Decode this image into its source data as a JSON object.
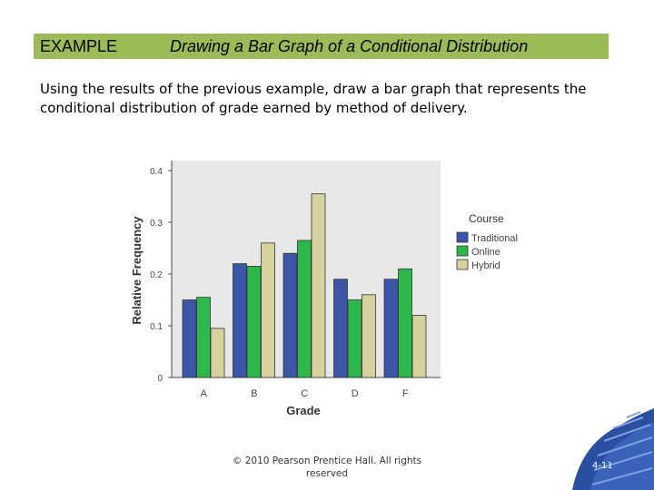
{
  "header": {
    "label": "EXAMPLE",
    "title": "Drawing a Bar Graph of a Conditional Distribution"
  },
  "intro_text": "Using the results of the previous example, draw a bar graph that represents the conditional distribution of grade earned by method of delivery.",
  "colors": {
    "header_bg": "#9bbb59",
    "traditional": "#3d55a6",
    "online": "#2eb84b",
    "hybrid": "#d6d2a0",
    "plot_bg": "#e8e8e8",
    "corner_blue": "#2a4ea0"
  },
  "chart_data": {
    "type": "bar",
    "categories": [
      "A",
      "B",
      "C",
      "D",
      "F"
    ],
    "series": [
      {
        "name": "Traditional",
        "values": [
          0.15,
          0.22,
          0.24,
          0.19,
          0.19
        ]
      },
      {
        "name": "Online",
        "values": [
          0.155,
          0.215,
          0.265,
          0.15,
          0.21
        ]
      },
      {
        "name": "Hybrid",
        "values": [
          0.095,
          0.26,
          0.355,
          0.16,
          0.12
        ]
      }
    ],
    "ylabel": "Relative Frequency",
    "xlabel": "Grade",
    "ylim": [
      0,
      0.4
    ],
    "yticks": [
      "0",
      "0.1",
      "0.2",
      "0.3",
      "0.4"
    ],
    "legend_title": "Course",
    "legend_position": "right",
    "grid": false
  },
  "footer": {
    "copyright": "© 2010 Pearson Prentice Hall. All rights reserved",
    "page_number": "4-11"
  }
}
